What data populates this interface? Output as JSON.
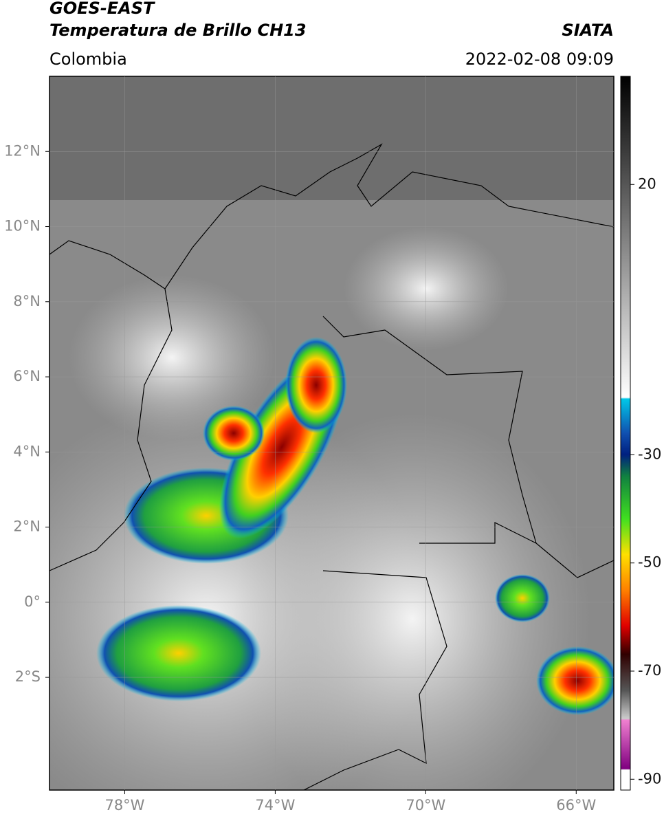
{
  "header": {
    "title": "GOES-EAST",
    "subtitle": "Temperatura de Brillo CH13",
    "region": "Colombia",
    "source": "SIATA",
    "datetime": "2022-02-08 09:09"
  },
  "map": {
    "xlim": [
      -80,
      -65
    ],
    "ylim": [
      -5,
      14
    ],
    "xticks": [
      {
        "value": -78,
        "label": "78°W"
      },
      {
        "value": -74,
        "label": "74°W"
      },
      {
        "value": -70,
        "label": "70°W"
      },
      {
        "value": -66,
        "label": "66°W"
      }
    ],
    "yticks": [
      {
        "value": 12,
        "label": "12°N"
      },
      {
        "value": 10,
        "label": "10°N"
      },
      {
        "value": 8,
        "label": "8°N"
      },
      {
        "value": 6,
        "label": "6°N"
      },
      {
        "value": 4,
        "label": "4°N"
      },
      {
        "value": 2,
        "label": "2°N"
      },
      {
        "value": 0,
        "label": "0°"
      },
      {
        "value": -2,
        "label": "2°S"
      }
    ],
    "grid": true
  },
  "colorbar": {
    "lim": [
      -92,
      40
    ],
    "ticks": [
      20,
      -30,
      -50,
      -70,
      -90
    ]
  }
}
